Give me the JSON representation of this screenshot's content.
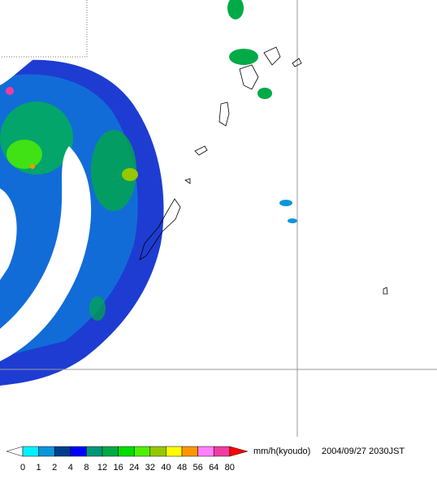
{
  "legend": {
    "labels": [
      0,
      1,
      2,
      4,
      8,
      12,
      16,
      24,
      32,
      40,
      48,
      56,
      64,
      80
    ],
    "colors": [
      "#00f0ff",
      "#0a96dc",
      "#003c8c",
      "#0000ff",
      "#00967a",
      "#00aa46",
      "#00dc00",
      "#50f000",
      "#96c800",
      "#ffff00",
      "#ff9600",
      "#ff80ff",
      "#f03ca0"
    ],
    "low_arrow_color": "#ffffff",
    "high_arrow_color": "#ff0000",
    "unit": "mm/h(kyoudo)",
    "timestamp": "2004/09/27 2030JST"
  }
}
